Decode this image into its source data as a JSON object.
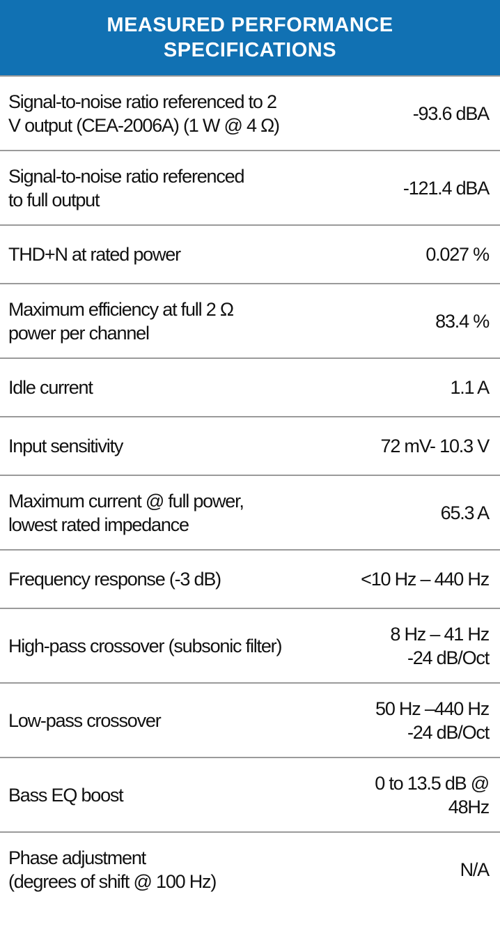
{
  "header": {
    "title": [
      "MEASURED PERFORMANCE",
      "SPECIFICATIONS"
    ]
  },
  "table": {
    "rows": [
      {
        "label": [
          "Signal-to-noise ratio referenced to 2",
          "V output (CEA-2006A)  (1 W @ 4 Ω)"
        ],
        "value": [
          "-93.6 dBA"
        ]
      },
      {
        "label": [
          "Signal-to-noise ratio referenced",
          "to full output"
        ],
        "value": [
          "-121.4 dBA"
        ]
      },
      {
        "label": [
          "THD+N at rated power"
        ],
        "value": [
          "0.027 %"
        ]
      },
      {
        "label": [
          "Maximum efficiency at full 2 Ω",
          "power per channel"
        ],
        "value": [
          "83.4 %"
        ]
      },
      {
        "label": [
          "Idle current"
        ],
        "value": [
          "1.1 A"
        ]
      },
      {
        "label": [
          "Input sensitivity"
        ],
        "value": [
          "72 mV- 10.3 V"
        ]
      },
      {
        "label": [
          "Maximum current @ full power,",
          "lowest rated impedance"
        ],
        "value": [
          "65.3 A"
        ]
      },
      {
        "label": [
          "Frequency response (-3 dB)"
        ],
        "value": [
          "<10 Hz – 440 Hz"
        ]
      },
      {
        "label": [
          "High-pass crossover (subsonic filter)"
        ],
        "value": [
          "8 Hz – 41 Hz",
          "-24 dB/Oct"
        ]
      },
      {
        "label": [
          "Low-pass crossover"
        ],
        "value": [
          "50 Hz –440 Hz",
          "-24 dB/Oct"
        ]
      },
      {
        "label": [
          "Bass EQ boost"
        ],
        "value": [
          "0 to 13.5 dB @",
          "48Hz"
        ]
      },
      {
        "label": [
          "Phase adjustment",
          "(degrees of shift @ 100 Hz)"
        ],
        "value": [
          "N/A"
        ]
      }
    ]
  }
}
